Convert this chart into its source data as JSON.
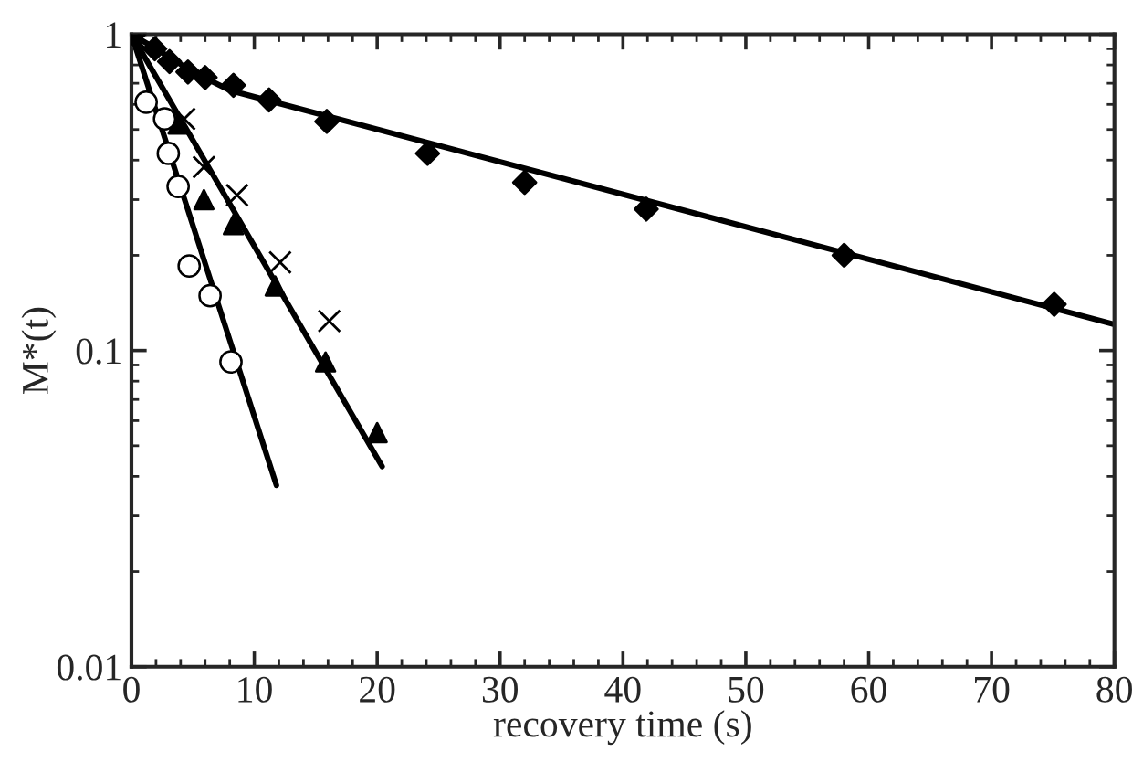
{
  "chart_data": {
    "type": "scatter",
    "xlabel": "recovery time (s)",
    "ylabel": "M*(t)",
    "log": "y",
    "xlim": [
      0,
      80
    ],
    "xticks": [
      0,
      10,
      20,
      30,
      40,
      50,
      60,
      70,
      80
    ],
    "ylim": [
      0.01,
      1
    ],
    "yticks": [
      0.01,
      0.1,
      1
    ],
    "grid": false,
    "legend": false,
    "series": [
      {
        "marker": "diamond",
        "color": "#000000",
        "x": [
          0.2,
          1.9,
          3.1,
          4.6,
          6.0,
          8.3,
          11.2,
          15.9,
          24.1,
          32.0,
          41.9,
          58.0,
          75.1
        ],
        "values": [
          1.0,
          0.9,
          0.82,
          0.76,
          0.73,
          0.69,
          0.62,
          0.53,
          0.42,
          0.34,
          0.28,
          0.2,
          0.14
        ]
      },
      {
        "marker": "triangle",
        "color": "#000000",
        "x": [
          3.8,
          5.9,
          8.3,
          11.7,
          15.8,
          20.0
        ],
        "values": [
          0.52,
          0.3,
          0.25,
          0.16,
          0.092,
          0.055
        ]
      },
      {
        "marker": "cross",
        "color": "#000000",
        "x": [
          0.3,
          4.3,
          5.9,
          8.6,
          12.1,
          16.1
        ],
        "values": [
          0.97,
          0.54,
          0.38,
          0.31,
          0.19,
          0.124
        ]
      },
      {
        "marker": "circle",
        "color": "#000000",
        "x": [
          1.2,
          2.7,
          3.0,
          3.8,
          4.7,
          6.4,
          8.1
        ],
        "values": [
          0.61,
          0.54,
          0.42,
          0.33,
          0.185,
          0.149,
          0.092
        ]
      },
      {
        "type": "line",
        "marker": "none",
        "color": "#000000",
        "x": [
          0,
          2,
          5,
          8,
          80
        ],
        "values": [
          1,
          0.9,
          0.76,
          0.665,
          0.121
        ]
      },
      {
        "type": "line",
        "marker": "none",
        "color": "#000000",
        "x": [
          0,
          20.4
        ],
        "values": [
          1,
          0.043
        ]
      },
      {
        "type": "line",
        "marker": "none",
        "color": "#000000",
        "x": [
          0,
          11.8
        ],
        "values": [
          1,
          0.0375
        ]
      }
    ]
  }
}
